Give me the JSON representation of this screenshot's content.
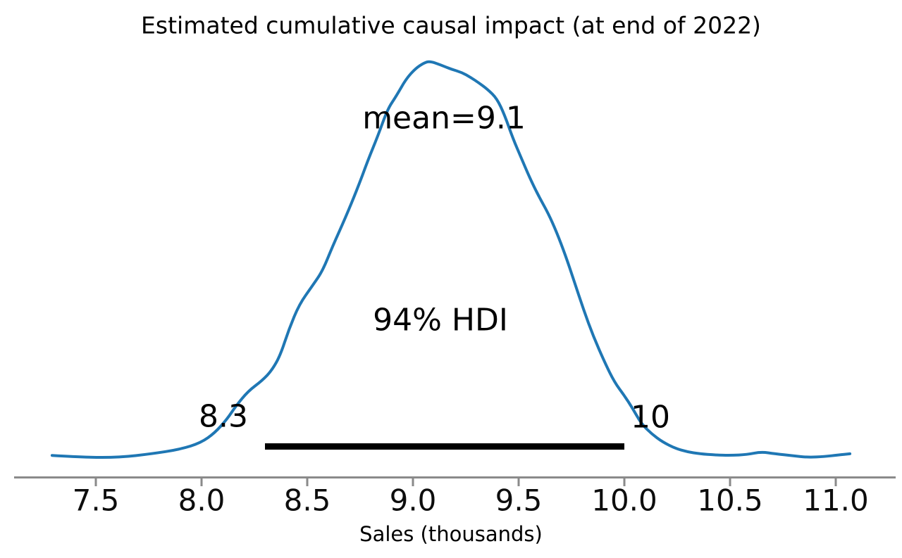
{
  "chart_data": {
    "type": "kde_posterior_density",
    "title": "Estimated cumulative causal impact (at end of 2022)",
    "xlabel": "Sales (thousands)",
    "mean": 9.1,
    "mean_label": "mean=9.1",
    "hdi_label": "94% HDI",
    "hdi_interval": {
      "lower": 8.3,
      "upper": 10,
      "lower_label": "8.3",
      "upper_label": "10"
    },
    "x_ticks": [
      7.5,
      8.0,
      8.5,
      9.0,
      9.5,
      10.0,
      10.5,
      11.0
    ],
    "x_tick_labels": [
      "7.5",
      "8.0",
      "8.5",
      "9.0",
      "9.5",
      "10.0",
      "10.5",
      "11.0"
    ],
    "x_range": [
      7.29,
      11.07
    ],
    "legend": "none",
    "grid": false,
    "colors": {
      "curve": "#1f77b4",
      "axis": "#8a8a8a",
      "hdi_bar": "#000000",
      "text": "#000000"
    },
    "kde": {
      "x_units": "sales_thousands",
      "density_units": "normalized_0_to_1",
      "points": [
        [
          7.293,
          0.005
        ],
        [
          7.447,
          0.0
        ],
        [
          7.613,
          0.0
        ],
        [
          7.763,
          0.009
        ],
        [
          7.897,
          0.02
        ],
        [
          7.997,
          0.037
        ],
        [
          8.063,
          0.062
        ],
        [
          8.12,
          0.096
        ],
        [
          8.163,
          0.13
        ],
        [
          8.22,
          0.167
        ],
        [
          8.287,
          0.194
        ],
        [
          8.333,
          0.22
        ],
        [
          8.373,
          0.258
        ],
        [
          8.413,
          0.323
        ],
        [
          8.463,
          0.387
        ],
        [
          8.523,
          0.432
        ],
        [
          8.573,
          0.471
        ],
        [
          8.62,
          0.533
        ],
        [
          8.68,
          0.604
        ],
        [
          8.74,
          0.682
        ],
        [
          8.787,
          0.75
        ],
        [
          8.833,
          0.81
        ],
        [
          8.88,
          0.879
        ],
        [
          8.92,
          0.911
        ],
        [
          8.967,
          0.955
        ],
        [
          9.013,
          0.982
        ],
        [
          9.053,
          0.996
        ],
        [
          9.08,
          1.0
        ],
        [
          9.13,
          0.991
        ],
        [
          9.18,
          0.98
        ],
        [
          9.23,
          0.972
        ],
        [
          9.273,
          0.959
        ],
        [
          9.313,
          0.945
        ],
        [
          9.353,
          0.929
        ],
        [
          9.397,
          0.906
        ],
        [
          9.433,
          0.865
        ],
        [
          9.473,
          0.805
        ],
        [
          9.513,
          0.755
        ],
        [
          9.553,
          0.705
        ],
        [
          9.597,
          0.657
        ],
        [
          9.64,
          0.616
        ],
        [
          9.68,
          0.568
        ],
        [
          9.72,
          0.512
        ],
        [
          9.763,
          0.444
        ],
        [
          9.807,
          0.373
        ],
        [
          9.853,
          0.306
        ],
        [
          9.907,
          0.24
        ],
        [
          9.953,
          0.19
        ],
        [
          10.0,
          0.156
        ],
        [
          10.04,
          0.123
        ],
        [
          10.08,
          0.085
        ],
        [
          10.13,
          0.059
        ],
        [
          10.18,
          0.039
        ],
        [
          10.24,
          0.023
        ],
        [
          10.297,
          0.014
        ],
        [
          10.357,
          0.009
        ],
        [
          10.43,
          0.006
        ],
        [
          10.503,
          0.005
        ],
        [
          10.58,
          0.007
        ],
        [
          10.647,
          0.014
        ],
        [
          10.713,
          0.009
        ],
        [
          10.797,
          0.004
        ],
        [
          10.87,
          0.0
        ],
        [
          10.947,
          0.002
        ],
        [
          11.013,
          0.006
        ],
        [
          11.067,
          0.009
        ]
      ]
    }
  }
}
